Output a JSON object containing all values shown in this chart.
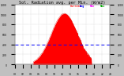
{
  "title": "Sol. Radiation avg. per Min. (W/m2)",
  "title_fontsize": 3.8,
  "fig_bg_color": "#c0c0c0",
  "plot_bg_color": "#ffffff",
  "fill_color": "#ff0000",
  "line_color": "#cc0000",
  "avg_line_color": "#0000ff",
  "legend_labels": [
    "Current",
    "Avg",
    "Min",
    "Max"
  ],
  "legend_colors": [
    "#ff0000",
    "#0000ff",
    "#ff00ff",
    "#00aa00"
  ],
  "ylim": [
    0,
    1200
  ],
  "yticks": [
    0,
    200,
    400,
    600,
    800,
    1000,
    1200
  ],
  "xlim_start": 0,
  "xlim_end": 1440,
  "avg_value": 390,
  "peak_value": 1020,
  "peak_x": 750,
  "sun_start": 280,
  "sun_end": 1160,
  "grid_color": "#aaaaaa",
  "tick_color": "#000000",
  "spine_color": "#888888"
}
